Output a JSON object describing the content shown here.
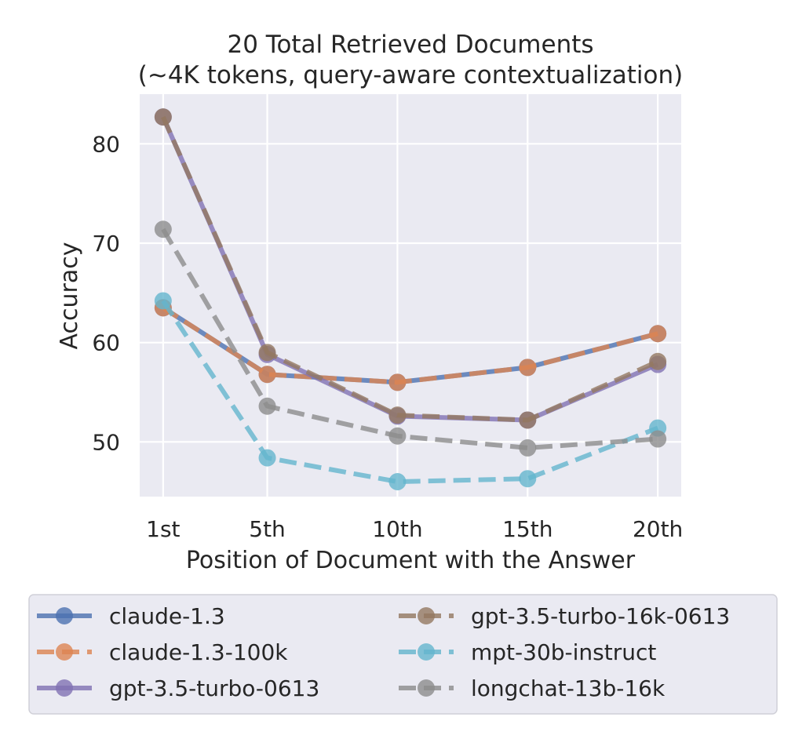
{
  "chart_data": {
    "type": "line",
    "title": "20 Total Retrieved Documents",
    "subtitle": "(~4K tokens, query-aware contextualization)",
    "xlabel": "Position of Document with the Answer",
    "ylabel": "Accuracy",
    "categories": [
      "1st",
      "5th",
      "10th",
      "15th",
      "20th"
    ],
    "x": [
      1,
      5,
      10,
      15,
      20
    ],
    "xlim": [
      0.1,
      20.9
    ],
    "ylim": [
      44.5,
      85.0
    ],
    "yticks": [
      50,
      60,
      70,
      80
    ],
    "ytick_labels": [
      "50",
      "60",
      "70",
      "80"
    ],
    "grid": true,
    "legend_position": "bottom",
    "series": [
      {
        "name": "claude-1.3",
        "color": "#4c72b0",
        "dash": "solid",
        "values": [
          63.5,
          56.8,
          56.0,
          57.5,
          60.9
        ]
      },
      {
        "name": "claude-1.3-100k",
        "color": "#dd8452",
        "dash": "dashed",
        "values": [
          63.5,
          56.8,
          56.0,
          57.5,
          60.9
        ]
      },
      {
        "name": "gpt-3.5-turbo-0613",
        "color": "#8172b3",
        "dash": "solid",
        "values": [
          82.7,
          58.8,
          52.6,
          52.2,
          57.8
        ]
      },
      {
        "name": "gpt-3.5-turbo-16k-0613",
        "color": "#937860",
        "dash": "dashed",
        "values": [
          82.7,
          59.0,
          52.7,
          52.2,
          58.1
        ]
      },
      {
        "name": "mpt-30b-instruct",
        "color": "#64b5cd",
        "dash": "dashed",
        "values": [
          64.2,
          48.4,
          46.0,
          46.3,
          51.4
        ]
      },
      {
        "name": "longchat-13b-16k",
        "color": "#8c8c8c",
        "dash": "dashed",
        "values": [
          71.4,
          53.6,
          50.6,
          49.4,
          50.3
        ]
      }
    ]
  }
}
